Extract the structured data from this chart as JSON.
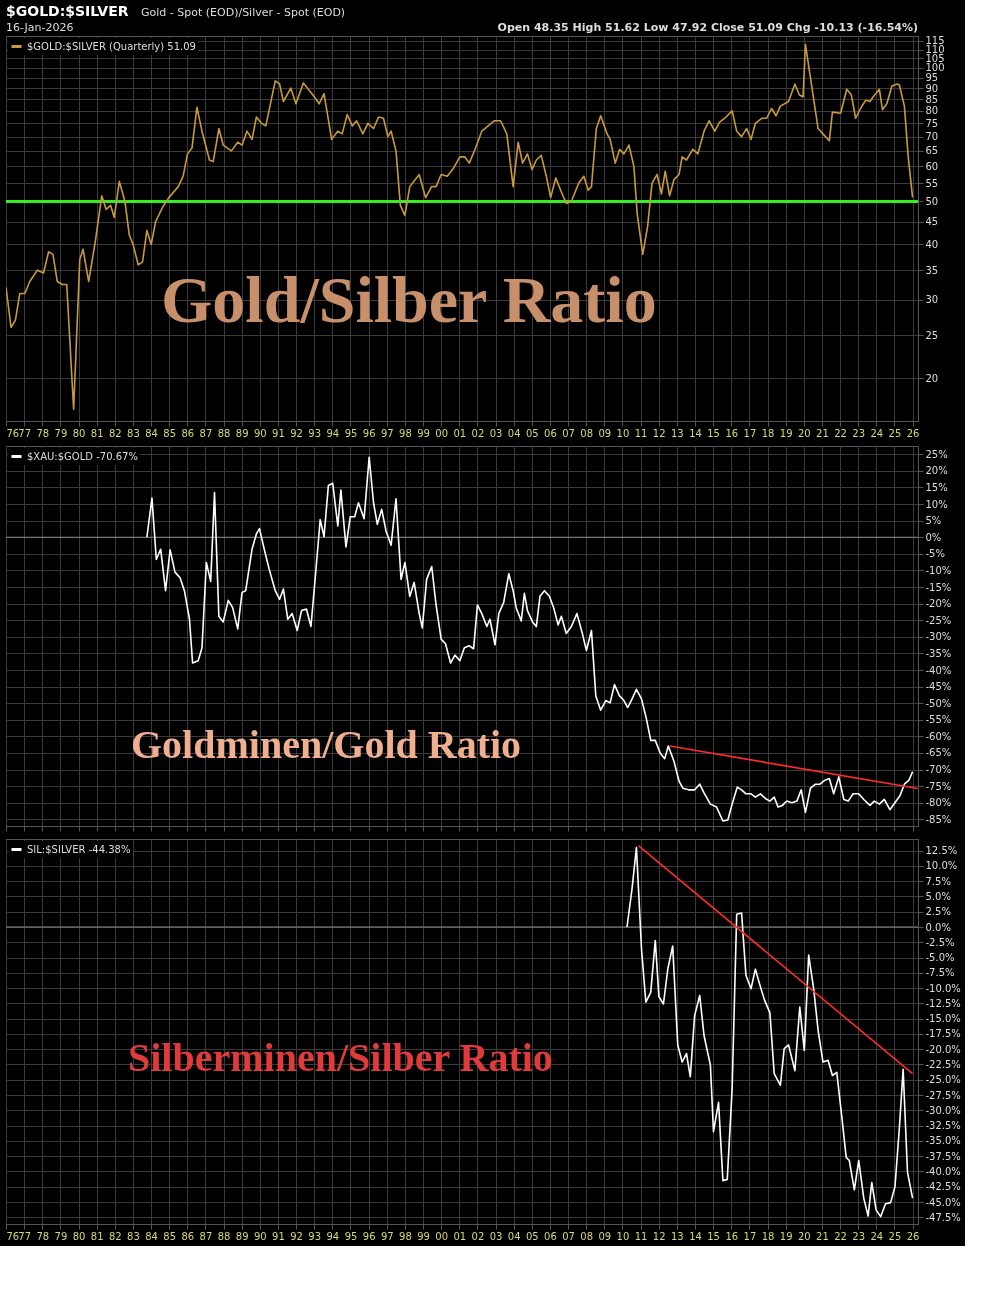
{
  "chart_data": [
    {
      "type": "line",
      "title": "$GOLD:$SILVER",
      "subtitle": "Gold - Spot (EOD)/Silver - Spot (EOD)",
      "annotations": [
        "16-Jan-2026",
        "Open 48.35 High 51.62 Low 47.92 Close 51.09 Chg -10.13 (-16.54%)",
        "Gold/Silber Ratio"
      ],
      "legend": "top left",
      "grid": true,
      "log": "y",
      "xlim": [
        1976,
        2026.3
      ],
      "ylim": [
        16,
        118
      ],
      "xticks": [
        {
          "value": 1976,
          "label": "76"
        },
        {
          "value": 1977,
          "label": "77"
        },
        {
          "value": 1978,
          "label": "78"
        },
        {
          "value": 1979,
          "label": "79"
        },
        {
          "value": 1980,
          "label": "80"
        },
        {
          "value": 1981,
          "label": "81"
        },
        {
          "value": 1982,
          "label": "82"
        },
        {
          "value": 1983,
          "label": "83"
        },
        {
          "value": 1984,
          "label": "84"
        },
        {
          "value": 1985,
          "label": "85"
        },
        {
          "value": 1986,
          "label": "86"
        },
        {
          "value": 1987,
          "label": "87"
        },
        {
          "value": 1988,
          "label": "88"
        },
        {
          "value": 1989,
          "label": "89"
        },
        {
          "value": 1990,
          "label": "90"
        },
        {
          "value": 1991,
          "label": "91"
        },
        {
          "value": 1992,
          "label": "92"
        },
        {
          "value": 1993,
          "label": "93"
        },
        {
          "value": 1994,
          "label": "94"
        },
        {
          "value": 1995,
          "label": "95"
        },
        {
          "value": 1996,
          "label": "96"
        },
        {
          "value": 1997,
          "label": "97"
        },
        {
          "value": 1998,
          "label": "98"
        },
        {
          "value": 1999,
          "label": "99"
        },
        {
          "value": 2000,
          "label": "00"
        },
        {
          "value": 2001,
          "label": "01"
        },
        {
          "value": 2002,
          "label": "02"
        },
        {
          "value": 2003,
          "label": "03"
        },
        {
          "value": 2004,
          "label": "04"
        },
        {
          "value": 2005,
          "label": "05"
        },
        {
          "value": 2006,
          "label": "06"
        },
        {
          "value": 2007,
          "label": "07"
        },
        {
          "value": 2008,
          "label": "08"
        },
        {
          "value": 2009,
          "label": "09"
        },
        {
          "value": 2010,
          "label": "10"
        },
        {
          "value": 2011,
          "label": "11"
        },
        {
          "value": 2012,
          "label": "12"
        },
        {
          "value": 2013,
          "label": "13"
        },
        {
          "value": 2014,
          "label": "14"
        },
        {
          "value": 2015,
          "label": "15"
        },
        {
          "value": 2016,
          "label": "16"
        },
        {
          "value": 2017,
          "label": "17"
        },
        {
          "value": 2018,
          "label": "18"
        },
        {
          "value": 2019,
          "label": "19"
        },
        {
          "value": 2020,
          "label": "20"
        },
        {
          "value": 2021,
          "label": "21"
        },
        {
          "value": 2022,
          "label": "22"
        },
        {
          "value": 2023,
          "label": "23"
        },
        {
          "value": 2024,
          "label": "24"
        },
        {
          "value": 2025,
          "label": "25"
        },
        {
          "value": 2026,
          "label": "26"
        }
      ],
      "yticks": [
        20,
        25,
        30,
        35,
        40,
        45,
        50,
        55,
        60,
        65,
        70,
        75,
        80,
        85,
        90,
        95,
        100,
        105,
        110,
        115
      ],
      "ref_lines": [
        {
          "axis": "y",
          "value": 50,
          "color": "#33ee22"
        }
      ],
      "series": [
        {
          "name": "$GOLD:$SILVER (Quarterly) 51.09",
          "color": "#c89a3a",
          "x": [
            1976.0,
            1976.28,
            1976.52,
            1976.76,
            1977.04,
            1977.31,
            1977.73,
            1978.07,
            1978.35,
            1978.59,
            1978.83,
            1979.11,
            1979.35,
            1979.73,
            1980.07,
            1980.25,
            1980.56,
            1980.94,
            1981.28,
            1981.52,
            1981.77,
            1981.97,
            1982.25,
            1982.56,
            1982.8,
            1983.01,
            1983.29,
            1983.53,
            1983.77,
            1984.01,
            1984.25,
            1984.63,
            1984.98,
            1985.5,
            1985.77,
            1986.01,
            1986.26,
            1986.53,
            1986.81,
            1987.22,
            1987.43,
            1987.74,
            1987.98,
            1988.43,
            1988.78,
            1989.02,
            1989.29,
            1989.57,
            1989.81,
            1990.09,
            1990.33,
            1990.85,
            1991.09,
            1991.3,
            1991.71,
            1991.99,
            1992.4,
            1992.92,
            1993.27,
            1993.54,
            1993.96,
            1994.3,
            1994.54,
            1994.82,
            1995.1,
            1995.34,
            1995.68,
            1995.96,
            1996.27,
            1996.55,
            1996.82,
            1997.06,
            1997.24,
            1997.51,
            1997.75,
            1998.0,
            1998.27,
            1998.79,
            1999.14,
            1999.48,
            1999.72,
            2000.0,
            2000.34,
            2000.69,
            2001.03,
            2001.31,
            2001.55,
            2001.9,
            2002.24,
            2002.59,
            2002.93,
            2003.28,
            2003.62,
            2003.97,
            2004.25,
            2004.49,
            2004.76,
            2005.01,
            2005.25,
            2005.52,
            2005.8,
            2006.04,
            2006.32,
            2006.63,
            2006.9,
            2007.18,
            2007.59,
            2007.87,
            2008.11,
            2008.29,
            2008.56,
            2008.8,
            2009.15,
            2009.32,
            2009.6,
            2009.84,
            2010.08,
            2010.36,
            2010.63,
            2010.81,
            2011.12,
            2011.39,
            2011.63,
            2011.91,
            2012.15,
            2012.36,
            2012.6,
            2012.84,
            2013.12,
            2013.29,
            2013.53,
            2013.88,
            2014.16,
            2014.5,
            2014.78,
            2015.09,
            2015.36,
            2015.71,
            2016.05,
            2016.3,
            2016.57,
            2016.85,
            2017.09,
            2017.33,
            2017.68,
            2017.95,
            2018.23,
            2018.47,
            2018.71,
            2019.16,
            2019.51,
            2019.75,
            2019.96,
            2020.09,
            2020.37,
            2020.79,
            2021.06,
            2021.41,
            2021.58,
            2022.03,
            2022.37,
            2022.62,
            2022.86,
            2023.13,
            2023.41,
            2023.65,
            2023.82,
            2024.17,
            2024.34,
            2024.58,
            2024.86,
            2025.14,
            2025.27,
            2025.55,
            2025.76,
            2026.0
          ],
          "values": [
            32,
            26,
            27,
            31,
            31,
            33,
            35,
            34.5,
            38.5,
            38,
            33,
            32.5,
            32.5,
            17,
            37,
            39,
            33,
            41,
            51.5,
            48,
            49,
            46,
            55.5,
            50,
            42,
            40,
            36,
            36.5,
            43,
            40,
            45,
            48.5,
            51,
            54,
            57,
            64,
            66,
            81.5,
            72,
            62,
            61.5,
            73,
            67,
            65,
            68,
            67,
            72,
            69,
            77.5,
            75,
            74,
            93.5,
            92,
            84,
            90,
            83,
            92.5,
            87,
            83,
            87.5,
            69,
            72,
            71,
            78.5,
            74,
            76,
            71,
            75,
            73,
            77.5,
            77,
            70,
            72,
            65,
            49,
            46.5,
            54,
            57.5,
            51,
            54,
            54,
            57.5,
            57,
            59.5,
            63,
            63,
            61,
            66,
            72,
            74,
            76,
            76,
            71,
            54,
            68,
            61,
            64,
            59,
            62,
            63.5,
            57,
            51,
            56.5,
            52.5,
            49.5,
            50,
            55,
            57,
            53,
            54,
            73,
            78,
            71,
            69,
            61,
            65.5,
            64,
            67,
            60,
            47,
            38,
            44,
            55,
            57.5,
            52,
            58.5,
            51.5,
            56,
            57.5,
            63,
            62,
            65.5,
            64,
            72,
            76,
            72,
            75.5,
            77.5,
            80,
            72,
            70,
            73,
            69,
            75,
            77,
            77,
            81,
            78,
            82,
            84,
            92,
            87,
            86,
            113,
            95,
            73,
            71,
            68.5,
            79.5,
            79,
            89.5,
            87,
            77,
            81,
            84.5,
            84,
            86,
            89.5,
            80.5,
            83,
            91,
            92,
            91.5,
            82,
            63,
            51.09
          ]
        }
      ]
    },
    {
      "type": "line",
      "annotations": [
        "Goldminen/Gold Ratio"
      ],
      "legend": "top left",
      "grid": true,
      "tick_labels": "y",
      "xlim": [
        1976,
        2026.3
      ],
      "ylim": [
        -87,
        27.5
      ],
      "xticks": [
        {
          "value": 1976,
          "label": null
        },
        {
          "value": 1977,
          "label": null
        },
        {
          "value": 1978,
          "label": null
        },
        {
          "value": 1979,
          "label": null
        },
        {
          "value": 1980,
          "label": null
        },
        {
          "value": 1981,
          "label": null
        },
        {
          "value": 1982,
          "label": null
        },
        {
          "value": 1983,
          "label": null
        },
        {
          "value": 1984,
          "label": null
        },
        {
          "value": 1985,
          "label": null
        },
        {
          "value": 1986,
          "label": null
        },
        {
          "value": 1987,
          "label": null
        },
        {
          "value": 1988,
          "label": null
        },
        {
          "value": 1989,
          "label": null
        },
        {
          "value": 1990,
          "label": null
        },
        {
          "value": 1991,
          "label": null
        },
        {
          "value": 1992,
          "label": null
        },
        {
          "value": 1993,
          "label": null
        },
        {
          "value": 1994,
          "label": null
        },
        {
          "value": 1995,
          "label": null
        },
        {
          "value": 1996,
          "label": null
        },
        {
          "value": 1997,
          "label": null
        },
        {
          "value": 1998,
          "label": null
        },
        {
          "value": 1999,
          "label": null
        },
        {
          "value": 2000,
          "label": null
        },
        {
          "value": 2001,
          "label": null
        },
        {
          "value": 2002,
          "label": null
        },
        {
          "value": 2003,
          "label": null
        },
        {
          "value": 2004,
          "label": null
        },
        {
          "value": 2005,
          "label": null
        },
        {
          "value": 2006,
          "label": null
        },
        {
          "value": 2007,
          "label": null
        },
        {
          "value": 2008,
          "label": null
        },
        {
          "value": 2009,
          "label": null
        },
        {
          "value": 2010,
          "label": null
        },
        {
          "value": 2011,
          "label": null
        },
        {
          "value": 2012,
          "label": null
        },
        {
          "value": 2013,
          "label": null
        },
        {
          "value": 2014,
          "label": null
        },
        {
          "value": 2015,
          "label": null
        },
        {
          "value": 2016,
          "label": null
        },
        {
          "value": 2017,
          "label": null
        },
        {
          "value": 2018,
          "label": null
        },
        {
          "value": 2019,
          "label": null
        },
        {
          "value": 2020,
          "label": null
        },
        {
          "value": 2021,
          "label": null
        },
        {
          "value": 2022,
          "label": null
        },
        {
          "value": 2023,
          "label": null
        },
        {
          "value": 2024,
          "label": null
        },
        {
          "value": 2025,
          "label": null
        },
        {
          "value": 2026,
          "label": null
        }
      ],
      "yticks": [
        {
          "value": 25,
          "label": "25%"
        },
        {
          "value": 20,
          "label": "20%"
        },
        {
          "value": 15,
          "label": "15%"
        },
        {
          "value": 10,
          "label": "10%"
        },
        {
          "value": 5,
          "label": "5%"
        },
        {
          "value": 0,
          "label": "0%"
        },
        {
          "value": -5,
          "label": "-5%"
        },
        {
          "value": -10,
          "label": "-10%"
        },
        {
          "value": -15,
          "label": "-15%"
        },
        {
          "value": -20,
          "label": "-20%"
        },
        {
          "value": -25,
          "label": "-25%"
        },
        {
          "value": -30,
          "label": "-30%"
        },
        {
          "value": -35,
          "label": "-35%"
        },
        {
          "value": -40,
          "label": "-40%"
        },
        {
          "value": -45,
          "label": "-45%"
        },
        {
          "value": -50,
          "label": "-50%"
        },
        {
          "value": -55,
          "label": "-55%"
        },
        {
          "value": -60,
          "label": "-60%"
        },
        {
          "value": -65,
          "label": "-65%"
        },
        {
          "value": -70,
          "label": "-70%"
        },
        {
          "value": -75,
          "label": "-75%"
        },
        {
          "value": -80,
          "label": "-80%"
        },
        {
          "value": -85,
          "label": "-85%"
        }
      ],
      "ref_lines": [
        {
          "axis": "y",
          "value": 0,
          "color": "#888888"
        }
      ],
      "series": [
        {
          "name": "$XAU:$GOLD -70.67%",
          "color": "#ffffff",
          "x": [
            1983.77,
            1984.05,
            1984.29,
            1984.53,
            1984.8,
            1985.05,
            1985.32,
            1985.6,
            1985.84,
            1986.12,
            1986.29,
            1986.6,
            1986.81,
            1987.05,
            1987.29,
            1987.5,
            1987.74,
            1987.98,
            1988.26,
            1988.5,
            1988.78,
            1989.02,
            1989.22,
            1989.57,
            1989.81,
            1989.98,
            1990.23,
            1990.5,
            1990.85,
            1991.09,
            1991.3,
            1991.54,
            1991.78,
            1992.06,
            1992.3,
            1992.57,
            1992.82,
            1993.09,
            1993.33,
            1993.54,
            1993.78,
            1994.02,
            1994.3,
            1994.47,
            1994.75,
            1994.99,
            1995.23,
            1995.44,
            1995.75,
            1996.03,
            1996.27,
            1996.48,
            1996.72,
            1996.96,
            1997.24,
            1997.51,
            1997.79,
            1998.0,
            1998.27,
            1998.51,
            1998.79,
            1998.96,
            1999.2,
            1999.48,
            1999.72,
            2000.0,
            2000.24,
            2000.52,
            2000.76,
            2001.03,
            2001.28,
            2001.55,
            2001.79,
            2002.0,
            2002.24,
            2002.52,
            2002.69,
            2002.97,
            2003.18,
            2003.45,
            2003.73,
            2003.97,
            2004.14,
            2004.42,
            2004.59,
            2004.76,
            2005.04,
            2005.25,
            2005.45,
            2005.7,
            2005.97,
            2006.21,
            2006.45,
            2006.63,
            2006.9,
            2007.18,
            2007.49,
            2007.77,
            2008.01,
            2008.29,
            2008.53,
            2008.8,
            2009.08,
            2009.32,
            2009.56,
            2009.84,
            2010.08,
            2010.29,
            2010.53,
            2010.77,
            2011.05,
            2011.32,
            2011.56,
            2011.81,
            2012.08,
            2012.33,
            2012.53,
            2012.84,
            2013.12,
            2013.33,
            2013.64,
            2013.98,
            2014.26,
            2014.5,
            2014.85,
            2015.19,
            2015.54,
            2015.81,
            2016.05,
            2016.33,
            2016.57,
            2016.81,
            2017.09,
            2017.33,
            2017.61,
            2017.88,
            2018.13,
            2018.37,
            2018.58,
            2018.82,
            2019.06,
            2019.34,
            2019.62,
            2019.86,
            2020.09,
            2020.37,
            2020.65,
            2020.89,
            2021.17,
            2021.41,
            2021.65,
            2021.93,
            2022.21,
            2022.45,
            2022.72,
            2023.03,
            2023.31,
            2023.65,
            2023.89,
            2024.17,
            2024.44,
            2024.75,
            2025.03,
            2025.31,
            2025.55,
            2025.8,
            2026.0
          ],
          "values": [
            0,
            11.8,
            -6.7,
            -3.6,
            -16.1,
            -3.8,
            -10.5,
            -12.2,
            -16.1,
            -24.7,
            -37.9,
            -37.2,
            -33.3,
            -7.6,
            -13.3,
            13.5,
            -23.8,
            -25.5,
            -19,
            -21.2,
            -27.6,
            -16.6,
            -16.1,
            -3.6,
            1,
            2.6,
            -3.3,
            -9.3,
            -16.1,
            -18.7,
            -15.6,
            -24.7,
            -23,
            -28.1,
            -22.1,
            -21.6,
            -26.9,
            -10.1,
            5.3,
            0.2,
            15.6,
            16.3,
            3.4,
            14.2,
            -2.9,
            6.2,
            6.2,
            10.4,
            5.6,
            24.1,
            10.4,
            3.9,
            8.4,
            1.9,
            -2.4,
            11.6,
            -12.7,
            -7.6,
            -17.8,
            -13.6,
            -23,
            -27.3,
            -12.7,
            -8.8,
            -20.4,
            -30.7,
            -32.1,
            -37.9,
            -35.5,
            -37.2,
            -33.3,
            -32.7,
            -33.6,
            -20.4,
            -23,
            -26.9,
            -24.7,
            -32.4,
            -23,
            -19.6,
            -11,
            -16.1,
            -21.3,
            -25.2,
            -16.9,
            -22.1,
            -25.5,
            -26.9,
            -17.8,
            -16.1,
            -17.8,
            -21.3,
            -26.4,
            -23.8,
            -29,
            -26.9,
            -23,
            -28.6,
            -34.1,
            -28.1,
            -47.8,
            -52.1,
            -49.2,
            -49.9,
            -44.4,
            -47.8,
            -49.2,
            -51.3,
            -48.7,
            -45.8,
            -48.7,
            -54.7,
            -61.2,
            -61.2,
            -65,
            -66.7,
            -62.9,
            -67.5,
            -73.5,
            -75.6,
            -76.1,
            -76.1,
            -74.4,
            -77,
            -80.4,
            -81.3,
            -85.5,
            -85.2,
            -80.4,
            -75.3,
            -76.1,
            -77.3,
            -77.3,
            -78.3,
            -77.3,
            -78.7,
            -79.5,
            -78.3,
            -81.3,
            -80.8,
            -79.5,
            -80,
            -79.5,
            -76.1,
            -82.9,
            -75.6,
            -74.4,
            -74.4,
            -73.2,
            -72.7,
            -77.3,
            -72.2,
            -79,
            -79.5,
            -77.3,
            -77.3,
            -79,
            -80.8,
            -79.5,
            -80.4,
            -79,
            -82.1,
            -80,
            -77.8,
            -74.4,
            -73.2,
            -70.67
          ]
        },
        {
          "type": "line",
          "color": "#ff2a2a",
          "x": [
            2012.61,
            2026.28
          ],
          "values": [
            -62.9,
            -75.7
          ]
        }
      ]
    },
    {
      "type": "line",
      "annotations": [
        "Silberminen/Silber Ratio"
      ],
      "legend": "top left",
      "grid": true,
      "xlim": [
        1976,
        2026.3
      ],
      "ylim": [
        -48.6,
        14.4
      ],
      "xticks": [
        {
          "value": 1976,
          "label": "76"
        },
        {
          "value": 1977,
          "label": "77"
        },
        {
          "value": 1978,
          "label": "78"
        },
        {
          "value": 1979,
          "label": "79"
        },
        {
          "value": 1980,
          "label": "80"
        },
        {
          "value": 1981,
          "label": "81"
        },
        {
          "value": 1982,
          "label": "82"
        },
        {
          "value": 1983,
          "label": "83"
        },
        {
          "value": 1984,
          "label": "84"
        },
        {
          "value": 1985,
          "label": "85"
        },
        {
          "value": 1986,
          "label": "86"
        },
        {
          "value": 1987,
          "label": "87"
        },
        {
          "value": 1988,
          "label": "88"
        },
        {
          "value": 1989,
          "label": "89"
        },
        {
          "value": 1990,
          "label": "90"
        },
        {
          "value": 1991,
          "label": "91"
        },
        {
          "value": 1992,
          "label": "92"
        },
        {
          "value": 1993,
          "label": "93"
        },
        {
          "value": 1994,
          "label": "94"
        },
        {
          "value": 1995,
          "label": "95"
        },
        {
          "value": 1996,
          "label": "96"
        },
        {
          "value": 1997,
          "label": "97"
        },
        {
          "value": 1998,
          "label": "98"
        },
        {
          "value": 1999,
          "label": "99"
        },
        {
          "value": 2000,
          "label": "00"
        },
        {
          "value": 2001,
          "label": "01"
        },
        {
          "value": 2002,
          "label": "02"
        },
        {
          "value": 2003,
          "label": "03"
        },
        {
          "value": 2004,
          "label": "04"
        },
        {
          "value": 2005,
          "label": "05"
        },
        {
          "value": 2006,
          "label": "06"
        },
        {
          "value": 2007,
          "label": "07"
        },
        {
          "value": 2008,
          "label": "08"
        },
        {
          "value": 2009,
          "label": "09"
        },
        {
          "value": 2010,
          "label": "10"
        },
        {
          "value": 2011,
          "label": "11"
        },
        {
          "value": 2012,
          "label": "12"
        },
        {
          "value": 2013,
          "label": "13"
        },
        {
          "value": 2014,
          "label": "14"
        },
        {
          "value": 2015,
          "label": "15"
        },
        {
          "value": 2016,
          "label": "16"
        },
        {
          "value": 2017,
          "label": "17"
        },
        {
          "value": 2018,
          "label": "18"
        },
        {
          "value": 2019,
          "label": "19"
        },
        {
          "value": 2020,
          "label": "20"
        },
        {
          "value": 2021,
          "label": "21"
        },
        {
          "value": 2022,
          "label": "22"
        },
        {
          "value": 2023,
          "label": "23"
        },
        {
          "value": 2024,
          "label": "24"
        },
        {
          "value": 2025,
          "label": "25"
        },
        {
          "value": 2026,
          "label": "26"
        }
      ],
      "yticks": [
        {
          "value": 12.5,
          "label": "12.5%"
        },
        {
          "value": 10,
          "label": "10.0%"
        },
        {
          "value": 7.5,
          "label": "7.5%"
        },
        {
          "value": 5,
          "label": "5.0%"
        },
        {
          "value": 2.5,
          "label": "2.5%"
        },
        {
          "value": 0,
          "label": "0.0%"
        },
        {
          "value": -2.5,
          "label": "-2.5%"
        },
        {
          "value": -5,
          "label": "-5.0%"
        },
        {
          "value": -7.5,
          "label": "-7.5%"
        },
        {
          "value": -10,
          "label": "-10.0%"
        },
        {
          "value": -12.5,
          "label": "-12.5%"
        },
        {
          "value": -15,
          "label": "-15.0%"
        },
        {
          "value": -17.5,
          "label": "-17.5%"
        },
        {
          "value": -20,
          "label": "-20.0%"
        },
        {
          "value": -22.5,
          "label": "-22.5%"
        },
        {
          "value": -25,
          "label": "-25.0%"
        },
        {
          "value": -27.5,
          "label": "-27.5%"
        },
        {
          "value": -30,
          "label": "-30.0%"
        },
        {
          "value": -32.5,
          "label": "-32.5%"
        },
        {
          "value": -35,
          "label": "-35.0%"
        },
        {
          "value": -37.5,
          "label": "-37.5%"
        },
        {
          "value": -40,
          "label": "-40.0%"
        },
        {
          "value": -42.5,
          "label": "-42.5%"
        },
        {
          "value": -45,
          "label": "-45.0%"
        },
        {
          "value": -47.5,
          "label": "-47.5%"
        }
      ],
      "ref_lines": [
        {
          "axis": "y",
          "value": 0,
          "color": "#888888"
        }
      ],
      "series": [
        {
          "name": "SIL:$SILVER -44.38%",
          "color": "#ffffff",
          "x": [
            2010.25,
            2010.53,
            2010.77,
            2011.05,
            2011.29,
            2011.56,
            2011.81,
            2012.01,
            2012.26,
            2012.5,
            2012.77,
            2013.05,
            2013.29,
            2013.53,
            2013.74,
            2013.98,
            2014.26,
            2014.5,
            2014.85,
            2015.02,
            2015.3,
            2015.54,
            2015.78,
            2016.05,
            2016.3,
            2016.57,
            2016.81,
            2017.09,
            2017.33,
            2017.61,
            2017.85,
            2018.13,
            2018.37,
            2018.71,
            2018.92,
            2019.16,
            2019.51,
            2019.78,
            2020.03,
            2020.27,
            2020.55,
            2020.79,
            2021.06,
            2021.34,
            2021.58,
            2021.82,
            2022.1,
            2022.34,
            2022.51,
            2022.79,
            2023.03,
            2023.31,
            2023.55,
            2023.75,
            2023.99,
            2024.24,
            2024.51,
            2024.79,
            2025.03,
            2025.27,
            2025.48,
            2025.72,
            2026.0
          ],
          "values": [
            0,
            6.3,
            13,
            -3.6,
            -12.3,
            -10.7,
            -2.2,
            -11.4,
            -12.6,
            -6.9,
            -3.1,
            -19.3,
            -22.1,
            -20.7,
            -24.5,
            -14.5,
            -11.2,
            -17.8,
            -22.6,
            -33.5,
            -28.7,
            -41.5,
            -41.3,
            -26.4,
            2.1,
            2.3,
            -7.9,
            -10.1,
            -6.9,
            -9.8,
            -12.1,
            -14,
            -24,
            -25.9,
            -19.9,
            -19.3,
            -23.5,
            -13.1,
            -20.2,
            -4.6,
            -10.2,
            -16.9,
            -22.1,
            -21.8,
            -24.3,
            -23.8,
            -31.1,
            -37.7,
            -38.2,
            -43,
            -38.2,
            -44.4,
            -47.3,
            -41.8,
            -46.3,
            -47.4,
            -45.3,
            -45.1,
            -42.5,
            -33,
            -23.3,
            -40.1,
            -44.38
          ]
        },
        {
          "type": "line",
          "color": "#ff2a2a",
          "x": [
            2010.88,
            2026.0
          ],
          "values": [
            13.3,
            -24.0
          ]
        }
      ]
    }
  ]
}
